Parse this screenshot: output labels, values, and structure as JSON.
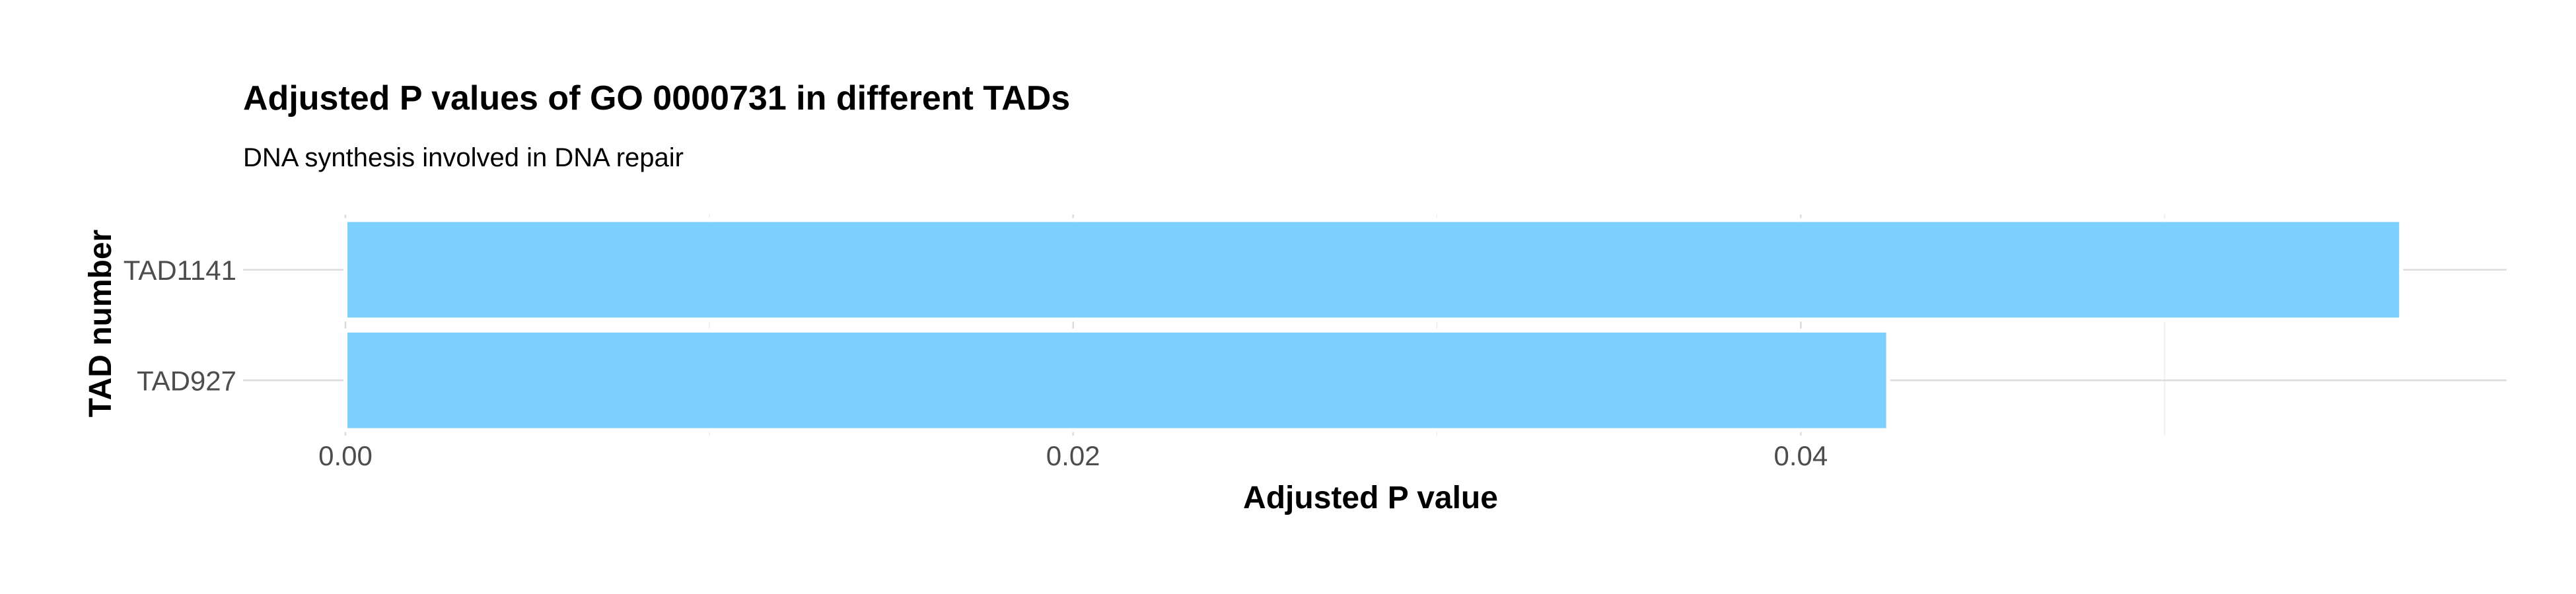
{
  "chart_data": {
    "type": "bar",
    "orientation": "horizontal",
    "title": "Adjusted P values of GO 0000731 in different TADs",
    "subtitle": "DNA synthesis involved in DNA repair",
    "xlabel": "Adjusted P value",
    "ylabel": "TAD number",
    "categories": [
      "TAD1141",
      "TAD927"
    ],
    "values": [
      0.0565,
      0.0424
    ],
    "xlim": [
      0,
      0.0594
    ],
    "xticks": [
      0.0,
      0.02,
      0.04
    ],
    "xtick_labels": [
      "0.00",
      "0.02",
      "0.04"
    ],
    "grid": true,
    "bar_color": "#74cffb"
  }
}
